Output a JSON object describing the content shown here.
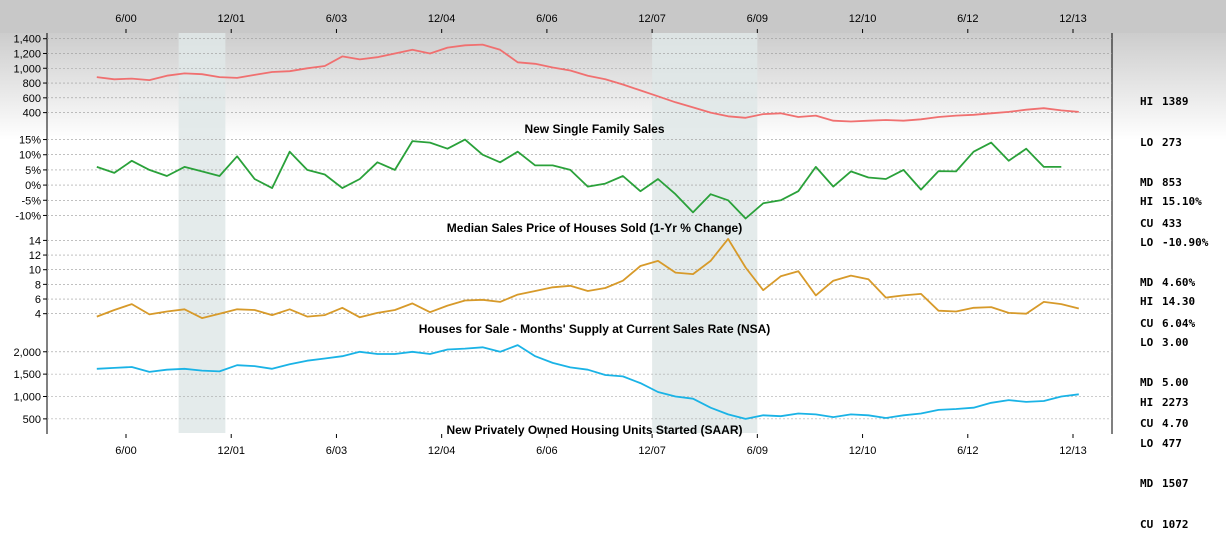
{
  "date_axis": [
    "6/00",
    "12/01",
    "6/03",
    "12/04",
    "6/06",
    "12/07",
    "6/09",
    "12/10",
    "6/12",
    "12/13"
  ],
  "stat_keys": [
    "HI",
    "LO",
    "MD",
    "CU"
  ],
  "colors": {
    "bg_top": "#bdbdbd",
    "bg_mid": "#ffffff",
    "recession": "#dfe7e7",
    "s1": "#f07070",
    "s2": "#2aa13a",
    "s3": "#d79a2a",
    "s4": "#1ab3e6"
  },
  "chart_data": [
    {
      "type": "line",
      "title": "New Single Family Sales",
      "y_ticks": [
        "1,400",
        "1,200",
        "1,000",
        "800",
        "600",
        "400"
      ],
      "ylim": [
        300,
        1450
      ],
      "stats": {
        "HI": "1389",
        "LO": "273",
        "MD": "853",
        "CU": "433"
      },
      "x": [
        "2000-01",
        "2000-04",
        "2000-07",
        "2000-10",
        "2001-01",
        "2001-04",
        "2001-07",
        "2001-10",
        "2002-01",
        "2002-04",
        "2002-07",
        "2002-10",
        "2003-01",
        "2003-04",
        "2003-07",
        "2003-10",
        "2004-01",
        "2004-04",
        "2004-07",
        "2004-10",
        "2005-01",
        "2005-04",
        "2005-07",
        "2005-10",
        "2006-01",
        "2006-04",
        "2006-07",
        "2006-10",
        "2007-01",
        "2007-04",
        "2007-07",
        "2007-10",
        "2008-01",
        "2008-04",
        "2008-07",
        "2008-10",
        "2009-01",
        "2009-04",
        "2009-07",
        "2009-10",
        "2010-01",
        "2010-04",
        "2010-07",
        "2010-10",
        "2011-01",
        "2011-04",
        "2011-07",
        "2011-10",
        "2012-01",
        "2012-04",
        "2012-07",
        "2012-10",
        "2013-01",
        "2013-04",
        "2013-07",
        "2013-10",
        "2014-01"
      ],
      "values": [
        880,
        850,
        860,
        840,
        900,
        930,
        920,
        880,
        870,
        910,
        950,
        960,
        1000,
        1030,
        1160,
        1120,
        1150,
        1200,
        1250,
        1200,
        1280,
        1310,
        1320,
        1250,
        1080,
        1060,
        1010,
        970,
        900,
        850,
        780,
        700,
        620,
        540,
        470,
        400,
        350,
        330,
        380,
        390,
        340,
        360,
        290,
        280,
        290,
        300,
        290,
        310,
        340,
        360,
        370,
        390,
        410,
        440,
        460,
        430,
        410
      ]
    },
    {
      "type": "line",
      "title": "Median Sales Price of Houses Sold (1-Yr % Change)",
      "y_ticks": [
        "15%",
        "10%",
        "5%",
        "0%",
        "-5%",
        "-10%"
      ],
      "ylim": [
        -11.5,
        16.5
      ],
      "stats": {
        "HI": "15.10%",
        "LO": "-10.90%",
        "MD": "4.60%",
        "CU": "6.04%"
      },
      "x": [
        "2000-01",
        "2000-04",
        "2000-07",
        "2000-10",
        "2001-01",
        "2001-04",
        "2001-07",
        "2001-10",
        "2002-01",
        "2002-04",
        "2002-07",
        "2002-10",
        "2003-01",
        "2003-04",
        "2003-07",
        "2003-10",
        "2004-01",
        "2004-04",
        "2004-07",
        "2004-10",
        "2005-01",
        "2005-04",
        "2005-07",
        "2005-10",
        "2006-01",
        "2006-04",
        "2006-07",
        "2006-10",
        "2007-01",
        "2007-04",
        "2007-07",
        "2007-10",
        "2008-01",
        "2008-04",
        "2008-07",
        "2008-10",
        "2009-01",
        "2009-04",
        "2009-07",
        "2009-10",
        "2010-01",
        "2010-04",
        "2010-07",
        "2010-10",
        "2011-01",
        "2011-04",
        "2011-07",
        "2011-10",
        "2012-01",
        "2012-04",
        "2012-07",
        "2012-10",
        "2013-01",
        "2013-04",
        "2013-07",
        "2013-10"
      ],
      "values": [
        6,
        4,
        8,
        5,
        3,
        6,
        4.5,
        3,
        9.5,
        2,
        -1,
        11,
        5,
        3.5,
        -1,
        2,
        7.5,
        5,
        14.5,
        14,
        12,
        15,
        10,
        7.5,
        11,
        6.5,
        6.5,
        5,
        -0.5,
        0.5,
        3,
        -2,
        2,
        -3,
        -9,
        -3,
        -5,
        -11,
        -6,
        -5,
        -2,
        6,
        -0.5,
        4.5,
        2.5,
        2,
        5,
        -1.5,
        4.6,
        4.5,
        11,
        14,
        8,
        12,
        6,
        6
      ]
    },
    {
      "type": "line",
      "title": "Houses for Sale - Months' Supply at Current Sales Rate (NSA)",
      "y_ticks": [
        "14",
        "12",
        "10",
        "8",
        "6",
        "4"
      ],
      "ylim": [
        3,
        14.6
      ],
      "stats": {
        "HI": "14.30",
        "LO": "3.00",
        "MD": "5.00",
        "CU": "4.70"
      },
      "x": [
        "2000-01",
        "2000-04",
        "2000-07",
        "2000-10",
        "2001-01",
        "2001-04",
        "2001-07",
        "2001-10",
        "2002-01",
        "2002-04",
        "2002-07",
        "2002-10",
        "2003-01",
        "2003-04",
        "2003-07",
        "2003-10",
        "2004-01",
        "2004-04",
        "2004-07",
        "2004-10",
        "2005-01",
        "2005-04",
        "2005-07",
        "2005-10",
        "2006-01",
        "2006-04",
        "2006-07",
        "2006-10",
        "2007-01",
        "2007-04",
        "2007-07",
        "2007-10",
        "2008-01",
        "2008-04",
        "2008-07",
        "2008-10",
        "2009-01",
        "2009-04",
        "2009-07",
        "2009-10",
        "2010-01",
        "2010-04",
        "2010-07",
        "2010-10",
        "2011-01",
        "2011-04",
        "2011-07",
        "2011-10",
        "2012-01",
        "2012-04",
        "2012-07",
        "2012-10",
        "2013-01",
        "2013-04",
        "2013-07",
        "2013-10",
        "2014-01"
      ],
      "values": [
        3.6,
        4.5,
        5.3,
        3.9,
        4.3,
        4.6,
        3.4,
        4,
        4.6,
        4.5,
        3.8,
        4.6,
        3.6,
        3.8,
        4.8,
        3.5,
        4.1,
        4.5,
        5.4,
        4.2,
        5.1,
        5.8,
        5.9,
        5.6,
        6.6,
        7.1,
        7.6,
        7.8,
        7.1,
        7.5,
        8.5,
        10.5,
        11.2,
        9.6,
        9.4,
        11.2,
        14.2,
        10.3,
        7.2,
        9.1,
        9.8,
        6.5,
        8.5,
        9.2,
        8.7,
        6.2,
        6.5,
        6.7,
        4.4,
        4.3,
        4.8,
        4.9,
        4.1,
        4.0,
        5.6,
        5.3,
        4.7
      ]
    },
    {
      "type": "line",
      "title": "New Privately Owned Housing Units Started (SAAR)",
      "y_ticks": [
        "2,000",
        "1,500",
        "1,000",
        "500"
      ],
      "ylim": [
        430,
        2330
      ],
      "stats": {
        "HI": "2273",
        "LO": "477",
        "MD": "1507",
        "CU": "1072"
      },
      "x": [
        "2000-01",
        "2000-04",
        "2000-07",
        "2000-10",
        "2001-01",
        "2001-04",
        "2001-07",
        "2001-10",
        "2002-01",
        "2002-04",
        "2002-07",
        "2002-10",
        "2003-01",
        "2003-04",
        "2003-07",
        "2003-10",
        "2004-01",
        "2004-04",
        "2004-07",
        "2004-10",
        "2005-01",
        "2005-04",
        "2005-07",
        "2005-10",
        "2006-01",
        "2006-04",
        "2006-07",
        "2006-10",
        "2007-01",
        "2007-04",
        "2007-07",
        "2007-10",
        "2008-01",
        "2008-04",
        "2008-07",
        "2008-10",
        "2009-01",
        "2009-04",
        "2009-07",
        "2009-10",
        "2010-01",
        "2010-04",
        "2010-07",
        "2010-10",
        "2011-01",
        "2011-04",
        "2011-07",
        "2011-10",
        "2012-01",
        "2012-04",
        "2012-07",
        "2012-10",
        "2013-01",
        "2013-04",
        "2013-07",
        "2013-10",
        "2014-01"
      ],
      "values": [
        1620,
        1640,
        1660,
        1550,
        1600,
        1620,
        1580,
        1560,
        1700,
        1680,
        1620,
        1720,
        1800,
        1850,
        1900,
        2000,
        1950,
        1950,
        2000,
        1950,
        2050,
        2070,
        2100,
        2000,
        2150,
        1900,
        1750,
        1650,
        1600,
        1480,
        1450,
        1300,
        1100,
        1000,
        950,
        750,
        600,
        500,
        580,
        560,
        620,
        600,
        540,
        600,
        580,
        520,
        580,
        620,
        700,
        720,
        750,
        860,
        920,
        880,
        900,
        1000,
        1050
      ]
    }
  ]
}
